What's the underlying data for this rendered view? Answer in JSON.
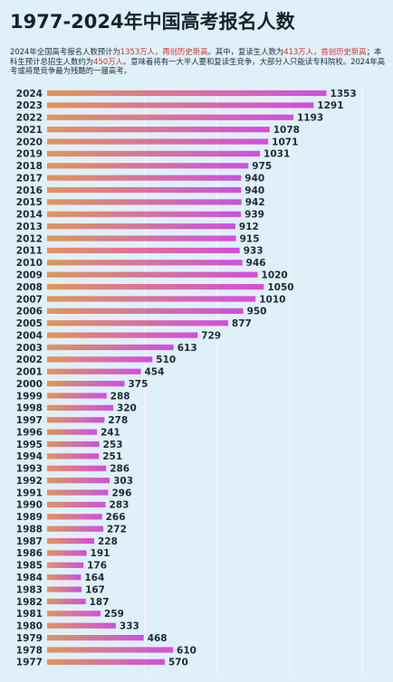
{
  "title": "1977-2024年中国高考报名人数",
  "description": {
    "p1": "2024年全国高考报名人数预计为",
    "h1": "1353万人，再创历史新高",
    "p2": "。其中，复读生人数为",
    "h2": "413万人，首创历史新高",
    "p3": "；本科生预计总招生人数约为",
    "h3": "450万人",
    "p4": "。意味着将有一大半人要和复读生竞争，大部分人只能读专科院校。2024年高考或将是竞争最为残酷的一届高考。"
  },
  "colors": {
    "background": "#dff0f9",
    "bar_start": "#e0955a",
    "bar_end": "#d04fe0",
    "highlight": "#d9312b",
    "gridline": "#ffffff"
  },
  "chart_data": {
    "type": "bar",
    "orientation": "horizontal",
    "title": "1977-2024年中国高考报名人数",
    "grid": "vertical white gridlines",
    "categories": [
      "2024",
      "2023",
      "2022",
      "2021",
      "2020",
      "2019",
      "2018",
      "2017",
      "2016",
      "2015",
      "2014",
      "2013",
      "2012",
      "2011",
      "2010",
      "2009",
      "2008",
      "2007",
      "2006",
      "2005",
      "2004",
      "2003",
      "2002",
      "2001",
      "2000",
      "1999",
      "1998",
      "1997",
      "1996",
      "1995",
      "1994",
      "1993",
      "1992",
      "1991",
      "1990",
      "1989",
      "1988",
      "1987",
      "1986",
      "1985",
      "1984",
      "1983",
      "1982",
      "1981",
      "1980",
      "1979",
      "1978",
      "1977"
    ],
    "values": [
      1353,
      1291,
      1193,
      1078,
      1071,
      1031,
      975,
      940,
      940,
      942,
      939,
      912,
      915,
      933,
      946,
      1020,
      1050,
      1010,
      950,
      877,
      729,
      613,
      510,
      454,
      375,
      288,
      320,
      278,
      241,
      253,
      251,
      286,
      303,
      296,
      283,
      266,
      272,
      228,
      191,
      176,
      164,
      167,
      187,
      259,
      333,
      468,
      610,
      570
    ],
    "xlim": [
      0,
      1430
    ]
  }
}
